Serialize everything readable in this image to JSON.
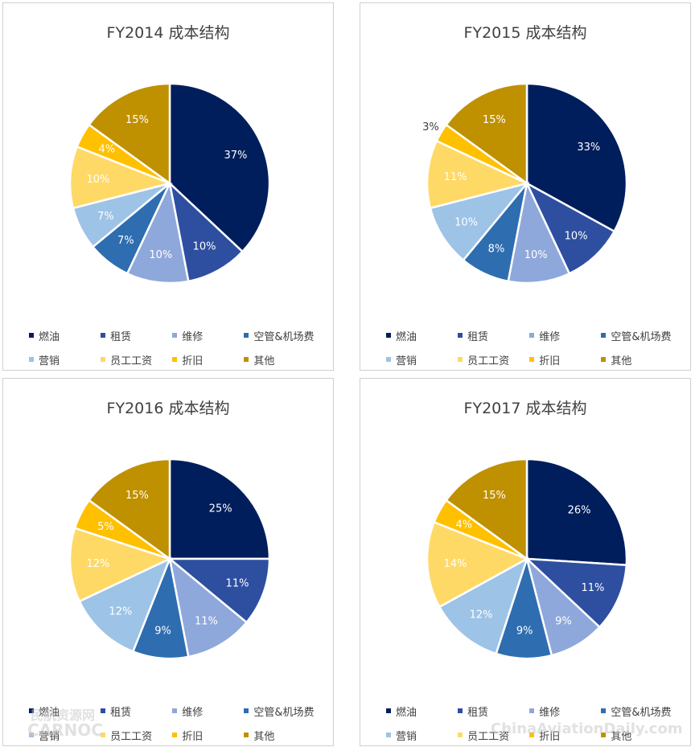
{
  "legend_labels": [
    "燃油",
    "租赁",
    "维修",
    "空管&机场费",
    "营销",
    "员工工资",
    "折旧",
    "其他"
  ],
  "colors": [
    "#001E5C",
    "#2E4FA0",
    "#8FA8DB",
    "#2E6DB0",
    "#9DC3E6",
    "#FFD966",
    "#FFC000",
    "#BF9000"
  ],
  "label_colors": [
    "#ffffff",
    "#ffffff",
    "#ffffff",
    "#ffffff",
    "#ffffff",
    "#ffffff",
    "#ffffff",
    "#ffffff"
  ],
  "chart_data": [
    {
      "type": "pie",
      "title": "FY2014 成本结构",
      "categories": [
        "燃油",
        "租赁",
        "维修",
        "空管&机场费",
        "营销",
        "员工工资",
        "折旧",
        "其他"
      ],
      "values": [
        37,
        10,
        10,
        7,
        7,
        10,
        4,
        15
      ],
      "labels": [
        "37%",
        "10%",
        "10%",
        "7%",
        "7%",
        "10%",
        "4%",
        "15%"
      ]
    },
    {
      "type": "pie",
      "title": "FY2015 成本结构",
      "categories": [
        "燃油",
        "租赁",
        "维修",
        "空管&机场费",
        "营销",
        "员工工资",
        "折旧",
        "其他"
      ],
      "values": [
        33,
        10,
        10,
        8,
        10,
        11,
        3,
        15
      ],
      "labels": [
        "33%",
        "10%",
        "10%",
        "8%",
        "10%",
        "11%",
        "3%",
        "15%"
      ]
    },
    {
      "type": "pie",
      "title": "FY2016 成本结构",
      "categories": [
        "燃油",
        "租赁",
        "维修",
        "空管&机场费",
        "营销",
        "员工工资",
        "折旧",
        "其他"
      ],
      "values": [
        25,
        11,
        11,
        9,
        12,
        12,
        5,
        15
      ],
      "labels": [
        "25%",
        "11%",
        "11%",
        "9%",
        "12%",
        "12%",
        "5%",
        "15%"
      ]
    },
    {
      "type": "pie",
      "title": "FY2017 成本结构",
      "categories": [
        "燃油",
        "租赁",
        "维修",
        "空管&机场费",
        "营销",
        "员工工资",
        "折旧",
        "其他"
      ],
      "values": [
        26,
        11,
        9,
        9,
        12,
        14,
        4,
        15
      ],
      "labels": [
        "26%",
        "11%",
        "9%",
        "9%",
        "12%",
        "14%",
        "4%",
        "15%"
      ]
    }
  ],
  "watermarks": [
    "民航资源网",
    "CARNOC",
    "ChinaAviationDaily.com"
  ]
}
